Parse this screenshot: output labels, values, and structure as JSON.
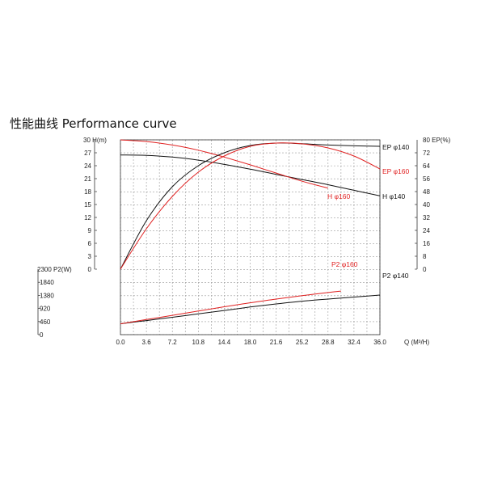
{
  "title": "性能曲线  Performance curve",
  "chart_data": {
    "type": "line",
    "grid": true,
    "x": [
      0,
      3.6,
      7.2,
      10.8,
      14.4,
      18.0,
      21.6,
      25.2,
      28.8,
      32.4,
      36.0
    ],
    "xlabel": "Q (M³/H)",
    "xlim": [
      0,
      36
    ],
    "x_ticks": [
      "0.0",
      "3.6",
      "7.2",
      "10.8",
      "14.4",
      "18.0",
      "21.6",
      "25.2",
      "28.8",
      "32.4",
      "36.0"
    ],
    "axes": {
      "head": {
        "label": "30 H(m)",
        "min": 0,
        "max": 30,
        "ticks": [
          "0",
          "3",
          "6",
          "9",
          "12",
          "15",
          "18",
          "21",
          "24",
          "27"
        ]
      },
      "efficiency": {
        "label": "80 EP(%)",
        "min": 0,
        "max": 80,
        "ticks": [
          "0",
          "8",
          "16",
          "24",
          "32",
          "40",
          "48",
          "56",
          "64",
          "72"
        ]
      },
      "power": {
        "label": "2300 P2(W)",
        "min": 0,
        "max": 2300,
        "ticks": [
          "0",
          "460",
          "920",
          "1380",
          "1840"
        ]
      }
    },
    "series": [
      {
        "name": "H φ140",
        "axis": "head",
        "color": "#111111",
        "x": [
          0,
          3.6,
          7.2,
          10.8,
          14.4,
          18.0,
          21.6,
          25.2,
          28.8,
          32.4,
          36.0
        ],
        "values": [
          26.5,
          26.4,
          26.0,
          25.3,
          24.3,
          23.2,
          22.0,
          20.8,
          19.6,
          18.3,
          17.0
        ]
      },
      {
        "name": "H φ160",
        "axis": "head",
        "color": "#e02020",
        "x": [
          0,
          3.6,
          7.2,
          10.8,
          14.4,
          18.0,
          21.6,
          25.2,
          28.8
        ],
        "values": [
          30.0,
          29.6,
          28.8,
          27.6,
          26.0,
          24.2,
          22.3,
          20.4,
          18.8
        ]
      },
      {
        "name": "EP φ140",
        "axis": "efficiency",
        "color": "#111111",
        "x": [
          0,
          3.6,
          7.2,
          10.8,
          14.4,
          18.0,
          21.6,
          25.2,
          28.8,
          32.4,
          36.0
        ],
        "values": [
          0,
          30,
          51,
          64,
          72,
          76.5,
          78,
          77.6,
          76.8,
          76.3,
          76.0
        ]
      },
      {
        "name": "EP φ160",
        "axis": "efficiency",
        "color": "#e02020",
        "x": [
          0,
          3.6,
          7.2,
          10.8,
          14.4,
          18.0,
          21.6,
          25.2,
          28.8,
          32.4,
          36.0
        ],
        "values": [
          0,
          25,
          45,
          60,
          70,
          76,
          78,
          77.5,
          75,
          70,
          62
        ]
      },
      {
        "name": "P2 φ140",
        "axis": "power",
        "color": "#111111",
        "x": [
          0,
          3.6,
          7.2,
          10.8,
          14.4,
          18.0,
          21.6,
          25.2,
          28.8,
          32.4,
          36.0
        ],
        "values": [
          380,
          495,
          610,
          730,
          850,
          970,
          1080,
          1175,
          1250,
          1320,
          1390
        ]
      },
      {
        "name": "P2 φ160",
        "axis": "power",
        "color": "#e02020",
        "x": [
          0,
          3.6,
          7.2,
          10.8,
          14.4,
          18.0,
          21.6,
          25.2,
          28.8,
          30.6
        ],
        "values": [
          380,
          530,
          680,
          830,
          980,
          1120,
          1250,
          1370,
          1480,
          1530
        ]
      }
    ]
  }
}
